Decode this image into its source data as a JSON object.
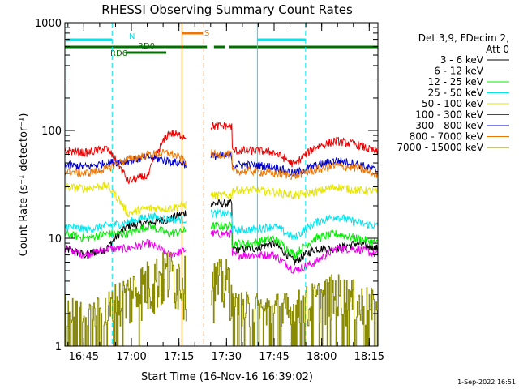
{
  "chart_data": {
    "type": "line",
    "title": "RHESSI Observing Summary Count Rates",
    "xlabel": "Start Time (16-Nov-16 16:39:02)",
    "ylabel": "Count Rate (s⁻¹ detector⁻¹)",
    "yscale": "log",
    "ylim": [
      1,
      1000
    ],
    "y_ticks": [
      {
        "value": 1,
        "label": "1"
      },
      {
        "value": 10,
        "label": "10"
      },
      {
        "value": 100,
        "label": "100"
      },
      {
        "value": 1000,
        "label": "1000"
      }
    ],
    "x_ticks": [
      "16:45",
      "17:00",
      "17:15",
      "17:30",
      "17:45",
      "18:00",
      "18:15"
    ],
    "legend_header": [
      "Det 3,9, FDecim 2,",
      "Att 0"
    ],
    "legend_position": "right",
    "footer": "1-Sep-2022 16:51",
    "flags": {
      "night": {
        "label": "N",
        "color": "#00e5ee"
      },
      "saa": {
        "label": "S",
        "color": "#ee7600"
      },
      "decim": {
        "labels": [
          "RD0",
          "RD6"
        ],
        "color": "#007000"
      }
    },
    "series": [
      {
        "name": "3 - 6 keV",
        "color": "#000000",
        "values": [
          8,
          7,
          8,
          13,
          14,
          15,
          18,
          21,
          0,
          8,
          9,
          6,
          8,
          8,
          9,
          8
        ]
      },
      {
        "name": "6 - 12 keV",
        "color": "#ee00ee",
        "values": [
          8,
          7,
          8,
          8,
          9,
          7,
          8,
          11,
          0,
          7,
          7,
          5,
          6,
          8,
          8,
          7
        ]
      },
      {
        "name": "12 - 25 keV",
        "color": "#00ee00",
        "values": [
          11,
          10,
          11,
          11,
          13,
          11,
          12,
          13,
          0,
          9,
          10,
          7,
          10,
          11,
          10,
          9
        ]
      },
      {
        "name": "25 - 50 keV",
        "color": "#00e5ee",
        "values": [
          13,
          12,
          13,
          14,
          16,
          15,
          15,
          17,
          0,
          12,
          13,
          10,
          14,
          16,
          14,
          13
        ]
      },
      {
        "name": "50 - 100 keV",
        "color": "#e5e500",
        "values": [
          30,
          29,
          31,
          17,
          19,
          19,
          21,
          25,
          0,
          28,
          27,
          25,
          27,
          30,
          28,
          27
        ]
      },
      {
        "name": "100 - 300 keV",
        "color": "#ee0000",
        "values": [
          65,
          62,
          68,
          34,
          38,
          95,
          86,
          110,
          0,
          65,
          63,
          48,
          70,
          80,
          74,
          62
        ]
      },
      {
        "name": "300 - 800 keV",
        "color": "#0000cd",
        "values": [
          48,
          46,
          50,
          52,
          57,
          52,
          48,
          58,
          0,
          48,
          46,
          40,
          47,
          53,
          49,
          42
        ]
      },
      {
        "name": "800 - 7000 keV",
        "color": "#ee7600",
        "values": [
          42,
          40,
          44,
          54,
          60,
          62,
          50,
          60,
          0,
          42,
          40,
          38,
          43,
          47,
          45,
          38
        ]
      },
      {
        "name": "7000 - 15000 keV",
        "color": "#8b8b00",
        "values": [
          2,
          1.5,
          2,
          3,
          4,
          5,
          4,
          4,
          0,
          2,
          2,
          2,
          2.5,
          3,
          2.5,
          2
        ]
      }
    ]
  }
}
